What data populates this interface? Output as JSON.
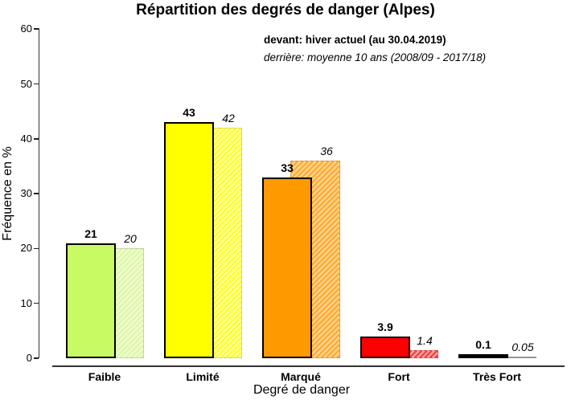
{
  "title": "Répartition des degrés de danger (Alpes)",
  "legend": {
    "front_label": "devant: hiver actuel (au 30.04.2019)",
    "back_label": "derrière: moyenne 10 ans (2008/09 - 2017/18)"
  },
  "chart_data": {
    "type": "bar",
    "title": "Répartition des degrés de danger (Alpes)",
    "xlabel": "Degré de danger",
    "ylabel": "Fréquence en %",
    "ylim": [
      0,
      60
    ],
    "yticks": [
      0,
      10,
      20,
      30,
      40,
      50,
      60
    ],
    "grid": false,
    "legend_position": "top-right",
    "categories": [
      "Faible",
      "Limité",
      "Marqué",
      "Fort",
      "Très Fort"
    ],
    "series": [
      {
        "name": "hiver actuel (au 30.04.2019)",
        "position": "devant",
        "values": [
          21,
          43,
          33,
          3.9,
          0.1
        ],
        "labels": [
          "21",
          "43",
          "33",
          "3.9",
          "0.1"
        ]
      },
      {
        "name": "moyenne 10 ans (2008/09 - 2017/18)",
        "position": "derrière",
        "values": [
          20,
          42,
          36,
          1.4,
          0.05
        ],
        "labels": [
          "20",
          "42",
          "36",
          "1.4",
          "0.05"
        ]
      }
    ],
    "colors": {
      "front": [
        "#c8fa64",
        "#ffff00",
        "#ff9900",
        "#ff0000",
        "#000000"
      ],
      "back_base": [
        "#def7a8",
        "#ffff2e",
        "#ffad33",
        "#ff4242",
        "#b0b0b0"
      ],
      "back_stripe": [
        "#f0fcd6",
        "#ffffb0",
        "#ffd699",
        "#ffadad",
        "#b0b0b0"
      ],
      "axis": "#333333"
    }
  }
}
